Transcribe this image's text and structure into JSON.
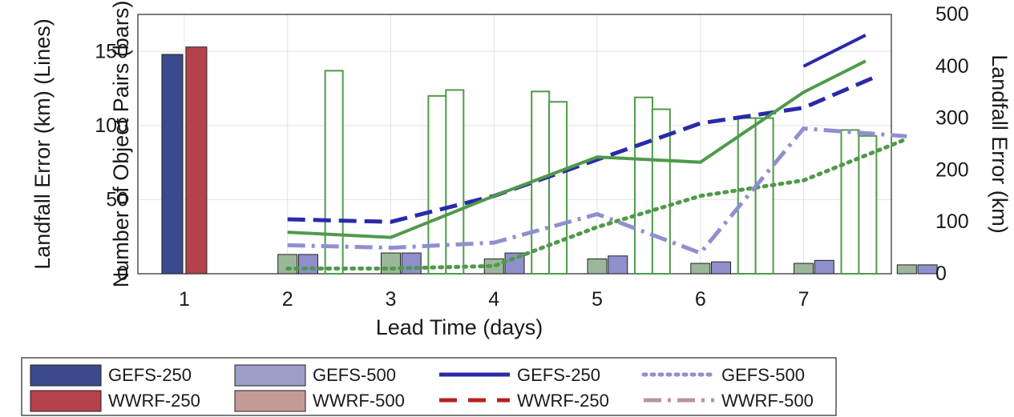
{
  "chart_data": {
    "type": "bar",
    "xlabel": "Lead Time (days)",
    "ylabel_left": "Number of Object Pairs (bars)",
    "ylabel_left_overlay": "Landfall Error (km) (Lines)",
    "ylabel_right": "Landfall Error (km)",
    "x": [
      1,
      2,
      3,
      4,
      5,
      6,
      7,
      8
    ],
    "x_tick_labels": [
      "1",
      "2",
      "3",
      "4",
      "5",
      "6",
      "7",
      ""
    ],
    "y_left_ticks": [
      "0",
      "50",
      "100",
      "150"
    ],
    "y_left_lim": [
      0,
      175
    ],
    "y_right_ticks": [
      "0",
      "100",
      "200",
      "300",
      "400",
      "500"
    ],
    "y_right_lim": [
      0,
      500
    ],
    "grid": true,
    "legend_position": "bottom",
    "colors": {
      "gefs250": "#3a4a8c",
      "wwrf250": "#b5414a",
      "gefs500": "#9d9fc9",
      "wwrf500": "#c49a97",
      "gefs250_line": "#2a2aa8",
      "wwrf250_line": "#b52020",
      "gefs500_line": "#8f8fd0",
      "wwrf500_line": "#b99595",
      "green_line": "#4f9a4a",
      "green_bar": "#9bb79b",
      "purple_bar": "#8f8fcc"
    },
    "bar_series": [
      {
        "name": "GEFS-250",
        "values": [
          148,
          0,
          0,
          0,
          0,
          0,
          0,
          0
        ]
      },
      {
        "name": "WWRF-250",
        "values": [
          153,
          0,
          0,
          0,
          0,
          0,
          0,
          0
        ]
      }
    ],
    "outline_bars": [
      {
        "x": 2.45,
        "value": 137
      },
      {
        "x": 3.45,
        "value": 120
      },
      {
        "x": 3.62,
        "value": 124
      },
      {
        "x": 4.45,
        "value": 123
      },
      {
        "x": 4.62,
        "value": 116
      },
      {
        "x": 5.45,
        "value": 119
      },
      {
        "x": 5.62,
        "value": 111
      },
      {
        "x": 6.45,
        "value": 105
      },
      {
        "x": 6.62,
        "value": 105
      },
      {
        "x": 7.45,
        "value": 97
      },
      {
        "x": 7.62,
        "value": 93
      }
    ],
    "small_bars": [
      {
        "x": 2.0,
        "value": 13,
        "kind": "green"
      },
      {
        "x": 2.2,
        "value": 13,
        "kind": "purple"
      },
      {
        "x": 3.0,
        "value": 14,
        "kind": "green"
      },
      {
        "x": 3.2,
        "value": 14,
        "kind": "purple"
      },
      {
        "x": 4.0,
        "value": 10,
        "kind": "green"
      },
      {
        "x": 4.2,
        "value": 14,
        "kind": "purple"
      },
      {
        "x": 5.0,
        "value": 10,
        "kind": "green"
      },
      {
        "x": 5.2,
        "value": 12,
        "kind": "purple"
      },
      {
        "x": 6.0,
        "value": 7,
        "kind": "green"
      },
      {
        "x": 6.2,
        "value": 8,
        "kind": "purple"
      },
      {
        "x": 7.0,
        "value": 7,
        "kind": "green"
      },
      {
        "x": 7.2,
        "value": 9,
        "kind": "purple"
      },
      {
        "x": 8.0,
        "value": 6,
        "kind": "green"
      },
      {
        "x": 8.2,
        "value": 6,
        "kind": "purple"
      }
    ],
    "line_series": [
      {
        "name": "GEFS-250",
        "style": "solid",
        "x": [
          7.0,
          7.6
        ],
        "y": [
          400,
          460
        ]
      },
      {
        "name": "WWRF-250",
        "style": "dashed",
        "x": [
          2.0,
          3.0,
          4.0,
          5.0,
          6.0,
          7.0,
          7.7
        ],
        "y": [
          105,
          100,
          150,
          220,
          290,
          320,
          380
        ]
      },
      {
        "name": "GEFS-500",
        "style": "dotted",
        "x": [
          2.0,
          3.0,
          4.0,
          5.0,
          6.0,
          7.0,
          8.0
        ],
        "y": [
          10,
          10,
          15,
          90,
          150,
          180,
          260
        ]
      },
      {
        "name": "WWRF-500",
        "style": "dashdot",
        "x": [
          2.0,
          3.0,
          4.0,
          5.0,
          6.0,
          7.0,
          8.0
        ],
        "y": [
          55,
          50,
          60,
          115,
          40,
          280,
          265
        ]
      },
      {
        "name": "",
        "style": "solid",
        "x": [
          2.0,
          3.0,
          4.0,
          5.0,
          6.0,
          7.0,
          7.6
        ],
        "y": [
          80,
          70,
          150,
          225,
          215,
          350,
          410
        ]
      }
    ],
    "legend": [
      {
        "label": "GEFS-250",
        "kind": "patch",
        "color_key": "gefs250"
      },
      {
        "label": "GEFS-500",
        "kind": "patch",
        "color_key": "gefs500"
      },
      {
        "label": "GEFS-250",
        "kind": "line",
        "style": "solid",
        "color_key": "gefs250_line"
      },
      {
        "label": "GEFS-500",
        "kind": "line",
        "style": "dotted",
        "color_key": "gefs500_line"
      },
      {
        "label": "WWRF-250",
        "kind": "patch",
        "color_key": "wwrf250"
      },
      {
        "label": "WWRF-500",
        "kind": "patch",
        "color_key": "wwrf500"
      },
      {
        "label": "WWRF-250",
        "kind": "line",
        "style": "dashed",
        "color_key": "wwrf250_line"
      },
      {
        "label": "WWRF-500",
        "kind": "line",
        "style": "dashdot",
        "color_key": "wwrf500_line"
      }
    ]
  }
}
